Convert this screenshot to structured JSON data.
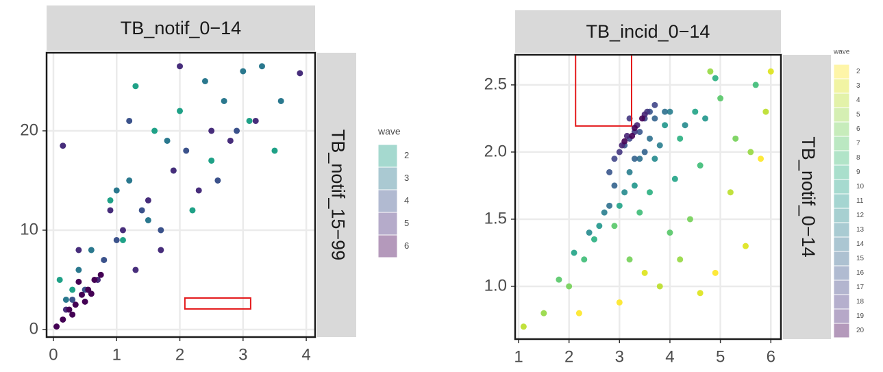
{
  "chart_data": [
    {
      "type": "scatter",
      "strip_top": "TB_notif_0−14",
      "strip_right": "TB_notif_15−99",
      "legend_title": "wave",
      "xlim": [
        -0.108,
        4.14
      ],
      "ylim": [
        -0.76,
        27.86
      ],
      "xticks": [
        0,
        1,
        2,
        3,
        4
      ],
      "yticks": [
        0,
        10,
        20
      ],
      "grid": true,
      "highlight": {
        "x": [
          2.08,
          3.12
        ],
        "y": [
          2.07,
          3.17
        ],
        "color": "#e41a1c"
      },
      "series": [
        {
          "name": "2",
          "color": "#1fa187",
          "x": [
            0.9,
            1.3,
            1.6,
            2.0,
            2.5,
            3.1,
            3.5,
            0.3,
            1.1,
            2.2,
            0.1,
            1.9
          ],
          "y": [
            13,
            24.5,
            20,
            22,
            17,
            21,
            18,
            4,
            9,
            12,
            5,
            16
          ]
        },
        {
          "name": "3",
          "color": "#2a788e",
          "x": [
            0.6,
            1.2,
            1.8,
            2.4,
            3.0,
            3.3,
            0.4,
            1.5,
            2.7,
            0.2,
            3.6,
            1.0
          ],
          "y": [
            8,
            15,
            19,
            25,
            26,
            26.5,
            6,
            11,
            23,
            3,
            23,
            14
          ]
        },
        {
          "name": "4",
          "color": "#3b528b",
          "x": [
            0.5,
            1.0,
            1.4,
            2.1,
            2.6,
            0.3,
            1.7,
            2.9,
            0.8,
            1.2
          ],
          "y": [
            4,
            9,
            12,
            18,
            15,
            3,
            10,
            20,
            7,
            21
          ]
        },
        {
          "name": "5",
          "color": "#472d7b",
          "x": [
            0.2,
            0.7,
            1.1,
            1.5,
            1.9,
            2.3,
            2.8,
            3.2,
            3.9,
            0.4,
            1.3,
            2.0,
            0.9,
            1.7,
            2.5,
            0.15
          ],
          "y": [
            2,
            5,
            10,
            13,
            16,
            14,
            19,
            21,
            25.8,
            8,
            6,
            26.5,
            12,
            8,
            20,
            18.5
          ]
        },
        {
          "name": "6",
          "color": "#440154",
          "x": [
            0.05,
            0.15,
            0.25,
            0.35,
            0.45,
            0.55,
            0.65,
            0.75,
            0.3,
            0.5,
            0.6,
            0.4
          ],
          "y": [
            0.3,
            1,
            2,
            2.5,
            3.5,
            4,
            5,
            5.5,
            1.5,
            2.8,
            3.6,
            4.8
          ]
        }
      ]
    },
    {
      "type": "scatter",
      "strip_top": "TB_incid_0−14",
      "strip_right": "TB_notif_0−14",
      "legend_title": "wave",
      "xlim": [
        0.932,
        6.2
      ],
      "ylim": [
        0.607,
        2.724
      ],
      "xticks": [
        1,
        2,
        3,
        4,
        5,
        6
      ],
      "yticks": [
        {
          "value": 1,
          "label": "1.0"
        },
        1.5,
        {
          "value": 2,
          "label": "2.0"
        },
        2.5
      ],
      "grid": true,
      "highlight": {
        "x": [
          2.13,
          3.24
        ],
        "y": [
          2.194,
          2.724
        ],
        "color": "#e41a1c"
      },
      "series": [
        {
          "name": "2",
          "color": "#fde725",
          "x": [
            3.0,
            4.9,
            5.8,
            2.2
          ],
          "y": [
            0.88,
            1.1,
            1.95,
            0.8
          ]
        },
        {
          "name": "3",
          "color": "#dde318",
          "x": [
            4.6,
            5.5,
            6.0,
            3.5
          ],
          "y": [
            0.95,
            1.3,
            2.6,
            1.1
          ]
        },
        {
          "name": "4",
          "color": "#bade28",
          "x": [
            1.1,
            3.8,
            5.2,
            5.9
          ],
          "y": [
            0.7,
            1.0,
            1.7,
            2.3
          ]
        },
        {
          "name": "5",
          "color": "#95d840",
          "x": [
            1.5,
            4.2,
            4.8,
            5.6
          ],
          "y": [
            0.8,
            1.2,
            2.6,
            2.0
          ]
        },
        {
          "name": "6",
          "color": "#73d056",
          "x": [
            2.0,
            3.2,
            4.4,
            5.3
          ],
          "y": [
            1.0,
            1.2,
            1.5,
            2.1
          ]
        },
        {
          "name": "7",
          "color": "#55c667",
          "x": [
            1.8,
            2.9,
            4.0,
            5.0
          ],
          "y": [
            1.05,
            1.45,
            1.4,
            2.4
          ]
        },
        {
          "name": "8",
          "color": "#3cbb75",
          "x": [
            2.3,
            3.4,
            4.6,
            5.7
          ],
          "y": [
            1.2,
            1.55,
            1.9,
            2.5
          ]
        },
        {
          "name": "9",
          "color": "#29af7f",
          "x": [
            2.5,
            3.6,
            4.2,
            4.9
          ],
          "y": [
            1.35,
            1.7,
            2.1,
            2.55
          ]
        },
        {
          "name": "10",
          "color": "#20a386",
          "x": [
            2.1,
            3.0,
            4.1,
            4.5
          ],
          "y": [
            1.25,
            1.6,
            1.8,
            2.3
          ]
        },
        {
          "name": "11",
          "color": "#1f968b",
          "x": [
            2.6,
            3.3,
            3.9,
            4.7
          ],
          "y": [
            1.45,
            1.75,
            2.2,
            2.25
          ]
        },
        {
          "name": "12",
          "color": "#238a8d",
          "x": [
            2.4,
            3.1,
            3.7,
            4.3
          ],
          "y": [
            1.4,
            1.7,
            1.95,
            2.2
          ]
        },
        {
          "name": "13",
          "color": "#287d8e",
          "x": [
            2.7,
            3.2,
            3.8,
            4.0
          ],
          "y": [
            1.55,
            1.85,
            2.05,
            2.3
          ]
        },
        {
          "name": "14",
          "color": "#2d708e",
          "x": [
            2.8,
            3.4,
            3.9,
            3.6
          ],
          "y": [
            1.6,
            1.95,
            2.3,
            2.1
          ]
        },
        {
          "name": "15",
          "color": "#33638d",
          "x": [
            2.9,
            3.3,
            3.7,
            3.5
          ],
          "y": [
            1.75,
            1.95,
            2.25,
            2.0
          ]
        },
        {
          "name": "16",
          "color": "#39558c",
          "x": [
            2.8,
            3.1,
            3.6,
            3.4
          ],
          "y": [
            1.85,
            2.05,
            2.3,
            2.15
          ]
        },
        {
          "name": "17",
          "color": "#404688",
          "x": [
            2.9,
            3.2,
            3.5,
            3.7
          ],
          "y": [
            1.95,
            2.1,
            2.25,
            2.35
          ]
        },
        {
          "name": "18",
          "color": "#453781",
          "x": [
            3.0,
            3.3,
            3.55,
            3.2
          ],
          "y": [
            2.0,
            2.15,
            2.3,
            2.25
          ]
        },
        {
          "name": "19",
          "color": "#482576",
          "x": [
            3.05,
            3.35,
            3.5,
            3.15
          ],
          "y": [
            2.05,
            2.2,
            2.28,
            2.12
          ]
        },
        {
          "name": "20",
          "color": "#440154",
          "x": [
            3.1,
            3.3,
            3.45,
            3.25
          ],
          "y": [
            2.08,
            2.18,
            2.25,
            2.12
          ]
        }
      ]
    }
  ]
}
